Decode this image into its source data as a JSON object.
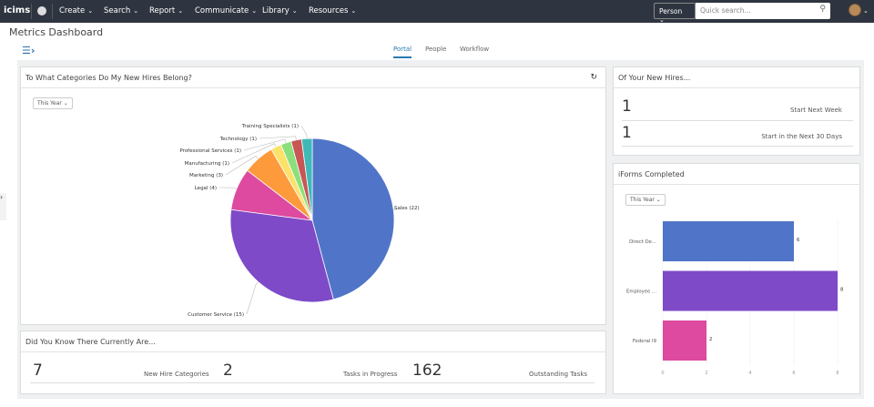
{
  "nav": {
    "logo": "icims",
    "menus": [
      "Create",
      "Search",
      "Report",
      "Communicate",
      "Library",
      "Resources"
    ],
    "person": "Person",
    "search_placeholder": "Quick search..."
  },
  "page": {
    "title": "Metrics Dashboard",
    "tabs": [
      "Portal",
      "People",
      "Workflow"
    ],
    "active_tab": "Portal"
  },
  "pie_panel": {
    "title": "To What Categories Do My New Hires Belong?",
    "filter": "This Year"
  },
  "new_hires": {
    "title": "Of Your New Hires...",
    "rows": [
      {
        "value": "1",
        "label": "Start Next Week"
      },
      {
        "value": "1",
        "label": "Start in the Next 30 Days"
      }
    ]
  },
  "did_you_know": {
    "title": "Did You Know There Currently Are...",
    "stats": [
      {
        "value": "7",
        "label": "New Hire Categories"
      },
      {
        "value": "2",
        "label": "Tasks in Progress"
      },
      {
        "value": "162",
        "label": "Outstanding Tasks"
      }
    ]
  },
  "iforms": {
    "title": "iForms Completed",
    "filter": "This Year"
  },
  "chart_data": [
    {
      "type": "pie",
      "categories": [
        "Sales",
        "Customer Service",
        "Legal",
        "Marketing",
        "Manufacturing",
        "Professional Services",
        "Technology",
        "Training Specialists"
      ],
      "values": [
        22,
        15,
        4,
        3,
        1,
        1,
        1,
        1
      ],
      "labels": [
        "Sales (22)",
        "Customer Service (15)",
        "Legal (4)",
        "Marketing (3)",
        "Manufacturing (1)",
        "Professional Services (1)",
        "Technology (1)",
        "Training Specialists (1)"
      ],
      "colors": [
        "#5075c8",
        "#7e4ac8",
        "#dd4aa0",
        "#fd9a3c",
        "#fde26a",
        "#8ddf7c",
        "#c85656",
        "#3fb8b8"
      ]
    },
    {
      "type": "bar",
      "orientation": "horizontal",
      "categories": [
        "Direct De...",
        "Employee ...",
        "Federal I9"
      ],
      "values": [
        6,
        8,
        2
      ],
      "colors": [
        "#5075c8",
        "#7e4ac8",
        "#dd4aa0"
      ],
      "xlim": [
        0,
        8
      ],
      "xticks": [
        "0",
        "2",
        "4",
        "6",
        "8"
      ],
      "grid": true
    }
  ]
}
